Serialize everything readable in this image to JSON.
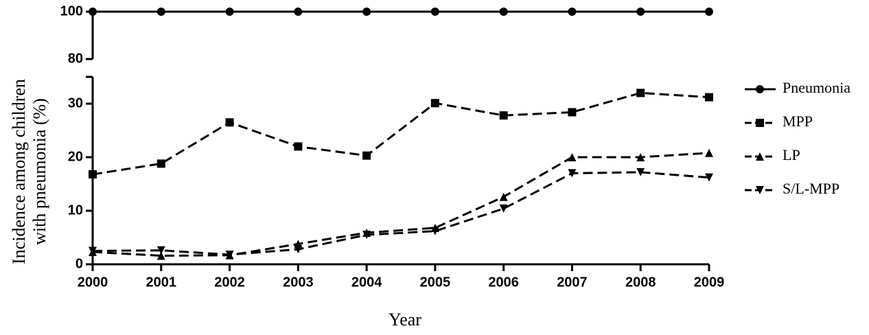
{
  "chart_data": {
    "type": "line",
    "ylabel": [
      "Incidence among children",
      "with pneumonia (%)"
    ],
    "xlabel": "Year",
    "categories": [
      "2000",
      "2001",
      "2002",
      "2003",
      "2004",
      "2005",
      "2006",
      "2007",
      "2008",
      "2009"
    ],
    "y_segments": [
      {
        "ylim": [
          0,
          35
        ],
        "yticks": [
          0,
          10,
          20,
          30
        ]
      },
      {
        "ylim": [
          80,
          100
        ],
        "yticks": [
          80,
          100
        ]
      }
    ],
    "series": [
      {
        "name": "Pneumonia",
        "color": "#000000",
        "line_style": "solid",
        "marker": "circle",
        "values": [
          100,
          100,
          100,
          100,
          100,
          100,
          100,
          100,
          100,
          100
        ]
      },
      {
        "name": "MPP",
        "color": "#000000",
        "line_style": "dashed",
        "marker": "square",
        "values": [
          16.8,
          18.8,
          26.5,
          22,
          20.3,
          30.1,
          27.8,
          28.4,
          32,
          31.2
        ]
      },
      {
        "name": "LP",
        "color": "#000000",
        "line_style": "dashed",
        "marker": "triangle-up",
        "values": [
          2.3,
          1.6,
          1.7,
          3.8,
          5.9,
          6.8,
          12.6,
          20,
          20,
          20.8
        ]
      },
      {
        "name": "S/L-MPP",
        "color": "#000000",
        "line_style": "dashed",
        "marker": "triangle-down",
        "values": [
          2.5,
          2.6,
          1.8,
          2.8,
          5.5,
          6.2,
          10.4,
          17,
          17.2,
          16.2
        ]
      }
    ]
  }
}
